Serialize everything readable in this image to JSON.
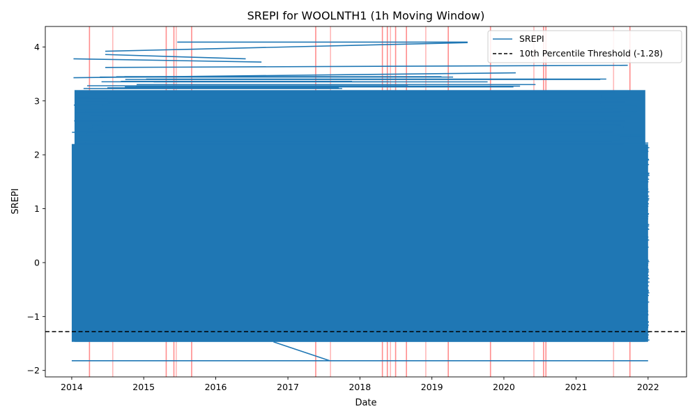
{
  "chart_data": {
    "type": "line",
    "title": "SREPI for WOOLNTH1 (1h Moving Window)",
    "xlabel": "Date",
    "ylabel": "SREPI",
    "x_range": [
      "2013-08-20",
      "2022-07-15"
    ],
    "ylim": [
      -2.12,
      4.38
    ],
    "x_ticks": [
      "2014",
      "2015",
      "2016",
      "2017",
      "2018",
      "2019",
      "2020",
      "2021",
      "2022"
    ],
    "y_ticks": [
      -2,
      -1,
      0,
      1,
      2,
      3,
      4
    ],
    "grid": false,
    "legend_position": "top-right",
    "series": [
      {
        "name": "SREPI",
        "color": "#1f77b4",
        "time_range": [
          "2014-01-01",
          "2022-01-01"
        ],
        "band_min": -1.47,
        "band_max": 2.2,
        "outliers": [
          {
            "x": [
              "2014-01-01",
              "2022-01-01"
            ],
            "y": [
              -1.82,
              -1.82
            ]
          },
          {
            "x": [
              "2016-10-20",
              "2017-08-01"
            ],
            "y": [
              -1.47,
              -1.82
            ]
          },
          {
            "x": [
              "2014-06-20",
              "2019-07-01"
            ],
            "y": [
              3.92,
              4.08
            ]
          },
          {
            "x": [
              "2015-06-20",
              "2019-07-01"
            ],
            "y": [
              4.09,
              4.09
            ]
          },
          {
            "x": [
              "2014-06-20",
              "2016-06-01"
            ],
            "y": [
              3.86,
              3.78
            ]
          },
          {
            "x": [
              "2014-01-10",
              "2016-08-20"
            ],
            "y": [
              3.78,
              3.72
            ]
          },
          {
            "x": [
              "2014-06-20",
              "2021-09-20"
            ],
            "y": [
              3.62,
              3.66
            ]
          },
          {
            "x": [
              "2014-01-10",
              "2020-03-01"
            ],
            "y": [
              3.43,
              3.52
            ]
          }
        ]
      },
      {
        "name": "10th Percentile Threshold (-1.28)",
        "color": "#000000",
        "style": "dashed",
        "value": -1.28
      }
    ],
    "red_vlines": [
      "2014-04-01",
      "2014-07-28",
      "2015-04-25",
      "2015-06-03",
      "2015-06-15",
      "2015-09-01",
      "2017-05-22",
      "2017-08-05",
      "2018-04-25",
      "2018-05-20",
      "2018-06-05",
      "2018-07-01",
      "2018-08-25",
      "2018-12-01",
      "2019-03-25",
      "2019-10-25",
      "2020-06-01",
      "2020-07-20",
      "2020-08-01",
      "2021-07-10",
      "2021-10-01"
    ]
  }
}
